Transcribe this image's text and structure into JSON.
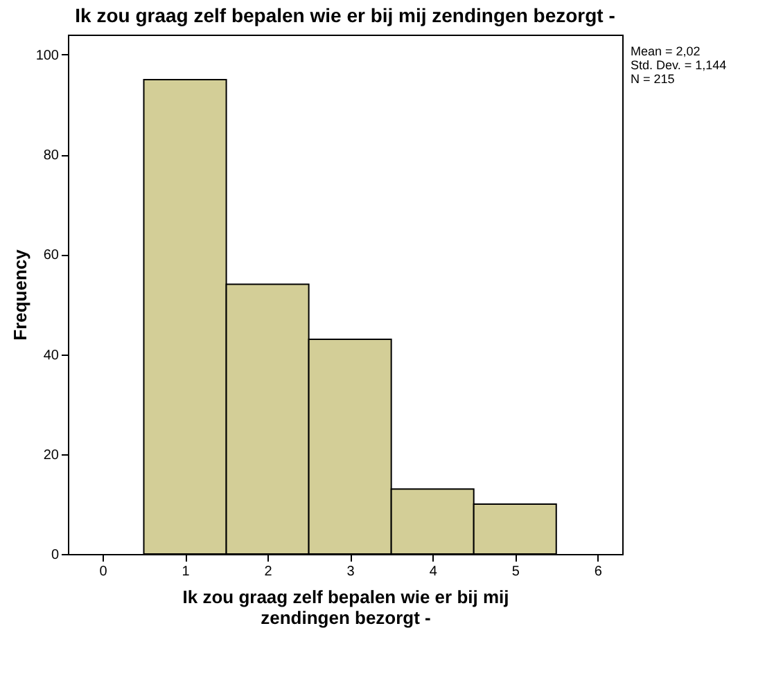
{
  "chart_data": {
    "type": "histogram",
    "title": "Ik zou graag zelf bepalen wie er bij mij zendingen bezorgt -",
    "xlabel": "Ik zou graag zelf bepalen wie er bij mij zendingen bezorgt -",
    "ylabel": "Frequency",
    "bins": [
      0.5,
      1.5,
      2.5,
      3.5,
      4.5,
      5.5
    ],
    "values": [
      95,
      54,
      43,
      13,
      10
    ],
    "color": "#d3ce97",
    "xlim": [
      -0.42,
      6.3
    ],
    "xticks": [
      0,
      1,
      2,
      3,
      4,
      5,
      6
    ],
    "ylim": [
      0,
      104
    ],
    "yticks": [
      0,
      20,
      40,
      60,
      80,
      100
    ],
    "grid": false,
    "annotations": [
      "Mean = 2,02",
      "Std. Dev. = 1,144",
      "N = 215"
    ]
  }
}
